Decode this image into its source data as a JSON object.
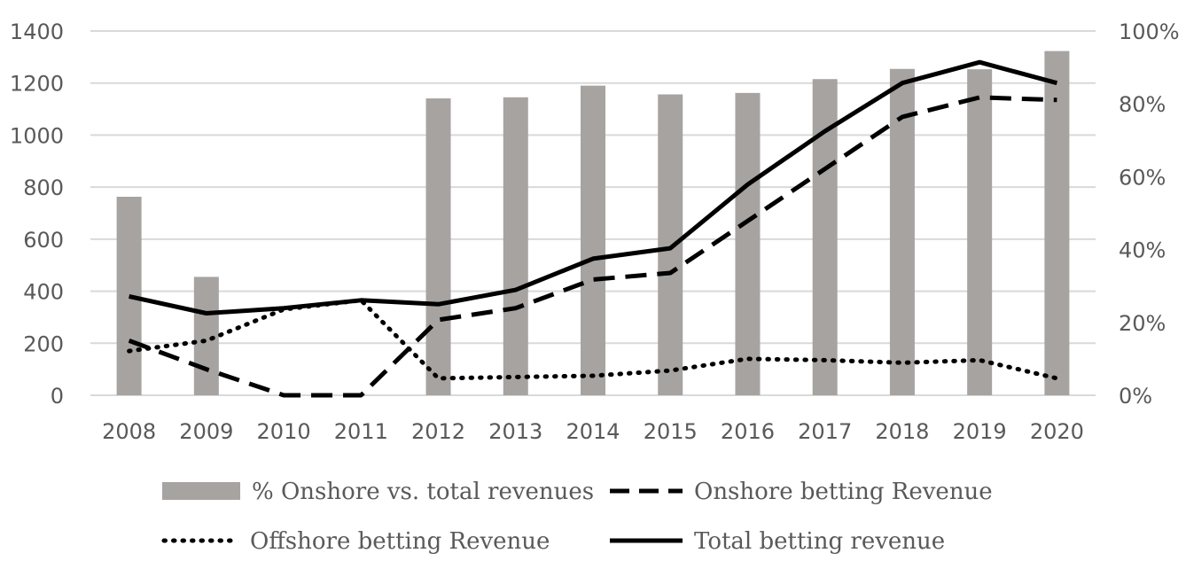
{
  "chart_data": {
    "type": "bar",
    "categories": [
      "2008",
      "2009",
      "2010",
      "2011",
      "2012",
      "2013",
      "2014",
      "2015",
      "2016",
      "2017",
      "2018",
      "2019",
      "2020"
    ],
    "bar_series": {
      "name": "% Onshore vs. total revenues",
      "axis": "right",
      "values": [
        54.5,
        32.5,
        0,
        0,
        81.5,
        81.8,
        85,
        82.6,
        83,
        86.8,
        89.6,
        89.5,
        94.5
      ]
    },
    "series": [
      {
        "name": "Onshore betting Revenue",
        "axis": "left",
        "style": "dashed",
        "values": [
          210,
          100,
          0,
          0,
          290,
          335,
          445,
          470,
          670,
          870,
          1070,
          1145,
          1135
        ]
      },
      {
        "name": "Offshore betting Revenue",
        "axis": "left",
        "style": "dotted",
        "values": [
          170,
          210,
          330,
          365,
          65,
          70,
          75,
          95,
          140,
          135,
          125,
          135,
          65
        ]
      },
      {
        "name": "Total betting revenue",
        "axis": "left",
        "style": "solid",
        "values": [
          380,
          315,
          335,
          365,
          350,
          405,
          525,
          565,
          810,
          1015,
          1200,
          1280,
          1200
        ]
      }
    ],
    "y_left": {
      "min": 0,
      "max": 1400,
      "ticks": [
        "0",
        "200",
        "400",
        "600",
        "800",
        "1000",
        "1200",
        "1400"
      ]
    },
    "y_right": {
      "min": 0,
      "max": 100,
      "ticks": [
        "0%",
        "20%",
        "40%",
        "60%",
        "80%",
        "100%"
      ]
    },
    "grid": true,
    "legend_position": "bottom",
    "colors": {
      "bar": "#a6a3a1",
      "line": "#000000",
      "grid": "#d9d9d9",
      "text": "#595959"
    }
  }
}
